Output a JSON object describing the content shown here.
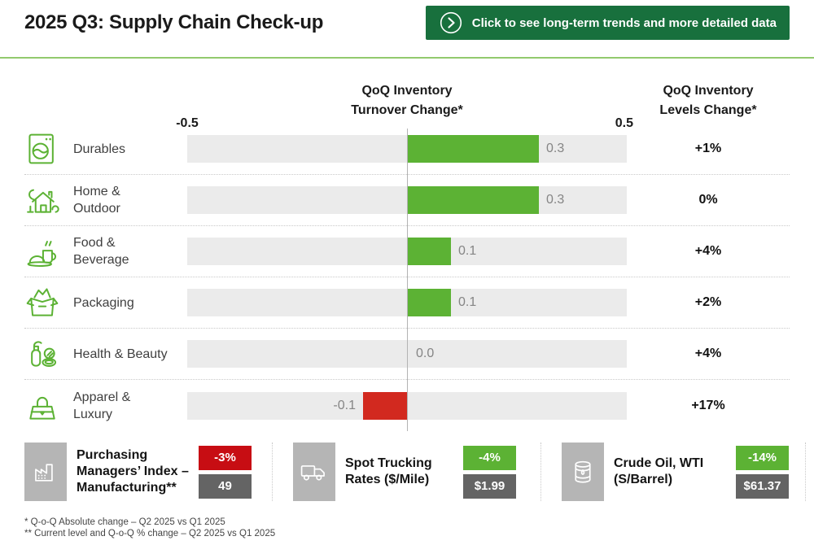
{
  "colors": {
    "button_green": "#18703d",
    "divider_green": "#92ca6e",
    "bar_green": "#5cb234",
    "bar_red": "#d2291f",
    "badge_red": "#c70d13",
    "badge_green": "#5cb234",
    "badge_gray": "#646464",
    "icon_tile_gray": "#b5b5b5",
    "track_gray": "#ebebeb"
  },
  "header": {
    "title": "2025 Q3: Supply Chain Check-up",
    "cta_label": "Click to see long-term trends and more detailed data"
  },
  "chart": {
    "turnover_header": [
      "QoQ Inventory",
      "Turnover Change*"
    ],
    "levels_header": [
      "QoQ Inventory",
      "Levels Change*"
    ],
    "axis_min": "-0.5",
    "axis_max": "0.5"
  },
  "chart_data": {
    "type": "bar",
    "orientation": "horizontal",
    "title": "QoQ Inventory Turnover Change*",
    "categories": [
      "Durables",
      "Home & Outdoor",
      "Food & Beverage",
      "Packaging",
      "Health & Beauty",
      "Apparel & Luxury"
    ],
    "series": [
      {
        "name": "QoQ Inventory Turnover Change*",
        "values": [
          0.3,
          0.3,
          0.1,
          0.1,
          0.0,
          -0.1
        ]
      },
      {
        "name": "QoQ Inventory Levels Change*",
        "values": [
          "+1%",
          "0%",
          "+4%",
          "+2%",
          "+4%",
          "+17%"
        ]
      }
    ],
    "xlim": [
      -0.5,
      0.5
    ],
    "grid": false,
    "positive_color": "#5cb234",
    "negative_color": "#d2291f"
  },
  "rows": [
    {
      "icon": "washing-machine-icon",
      "label": "Durables",
      "value": 0.3,
      "turnover_label": "0.3",
      "levels_label": "+1%"
    },
    {
      "icon": "house-icon",
      "label": "Home & Outdoor",
      "value": 0.3,
      "turnover_label": "0.3",
      "levels_label": "0%"
    },
    {
      "icon": "food-beverage-icon",
      "label": "Food & Beverage",
      "value": 0.1,
      "turnover_label": "0.1",
      "levels_label": "+4%"
    },
    {
      "icon": "open-box-icon",
      "label": "Packaging",
      "value": 0.1,
      "turnover_label": "0.1",
      "levels_label": "+2%"
    },
    {
      "icon": "cosmetics-icon",
      "label": "Health & Beauty",
      "value": 0.0,
      "turnover_label": "0.0",
      "levels_label": "+4%"
    },
    {
      "icon": "handbag-icon",
      "label": "Apparel & Luxury",
      "value": -0.1,
      "turnover_label": "-0.1",
      "levels_label": "+17%"
    }
  ],
  "kpis": [
    {
      "icon": "factory-icon",
      "label": "Purchasing Managers’ Index – Manufacturing**",
      "change": "-3%",
      "change_color": "#c70d13",
      "level": "49"
    },
    {
      "icon": "truck-icon",
      "label": "Spot Trucking Rates ($/Mile)",
      "change": "-4%",
      "change_color": "#5cb234",
      "level": "$1.99"
    },
    {
      "icon": "oil-barrel-icon",
      "label": "Crude Oil, WTI (S/Barrel)",
      "change": "-14%",
      "change_color": "#5cb234",
      "level": "$61.37"
    }
  ],
  "footnotes": [
    "* Q-o-Q Absolute change – Q2 2025 vs Q1 2025",
    "** Current level and Q-o-Q % change – Q2 2025 vs Q1 2025"
  ]
}
